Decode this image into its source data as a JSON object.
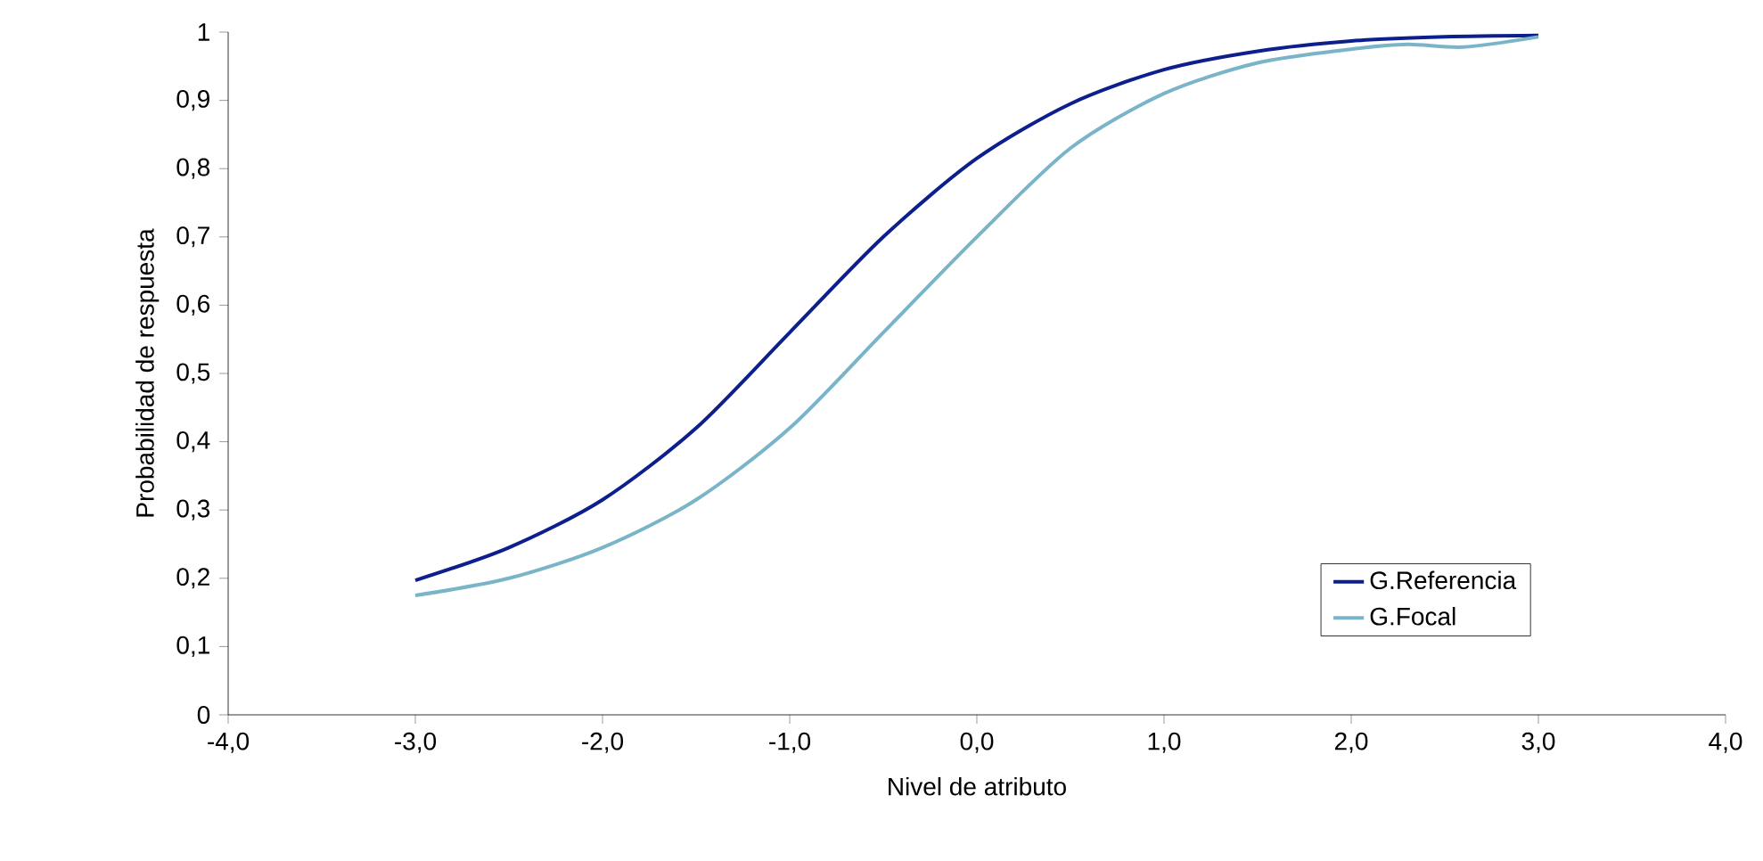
{
  "chart_data": {
    "type": "line",
    "xlabel": "Nivel de atributo",
    "ylabel": "Probabilidad de respuesta",
    "x": [
      -3,
      -2.5,
      -2,
      -1.5,
      -1,
      -0.5,
      0,
      0.5,
      1,
      1.5,
      2,
      2.5,
      3
    ],
    "series": [
      {
        "name": "G.Referencia",
        "color": "#0d1f8c",
        "values": [
          0.197,
          0.245,
          0.315,
          0.42,
          0.56,
          0.7,
          0.815,
          0.895,
          0.945,
          0.972,
          0.987,
          0.993,
          0.995
        ]
      },
      {
        "name": "G.Focal",
        "color": "#7ab4c8",
        "x": [
          -3,
          -2.5,
          -2,
          -1.5,
          -1,
          -0.5,
          0,
          0.5,
          1,
          1.5,
          2,
          2.3,
          2.6,
          3
        ],
        "values": [
          0.175,
          0.2,
          0.245,
          0.315,
          0.42,
          0.56,
          0.7,
          0.83,
          0.91,
          0.955,
          0.975,
          0.982,
          0.978,
          0.993
        ]
      }
    ],
    "xlim": [
      -4,
      4
    ],
    "xticks": [
      {
        "value": -4,
        "label": "-4,0"
      },
      {
        "value": -3,
        "label": "-3,0"
      },
      {
        "value": -2,
        "label": "-2,0"
      },
      {
        "value": -1,
        "label": "-1,0"
      },
      {
        "value": 0,
        "label": "0,0"
      },
      {
        "value": 1,
        "label": "1,0"
      },
      {
        "value": 2,
        "label": "2,0"
      },
      {
        "value": 3,
        "label": "3,0"
      },
      {
        "value": 4,
        "label": "4,0"
      }
    ],
    "ylim": [
      0,
      1
    ],
    "yticks": [
      0,
      {
        "value": 0.1,
        "label": "0,1"
      },
      {
        "value": 0.2,
        "label": "0,2"
      },
      {
        "value": 0.3,
        "label": "0,3"
      },
      {
        "value": 0.4,
        "label": "0,4"
      },
      {
        "value": 0.5,
        "label": "0,5"
      },
      {
        "value": 0.6,
        "label": "0,6"
      },
      {
        "value": 0.7,
        "label": "0,7"
      },
      {
        "value": 0.8,
        "label": "0,8"
      },
      {
        "value": 0.9,
        "label": "0,9"
      },
      1
    ],
    "legend": "bottom right",
    "marker": "none",
    "line_style": "solid"
  }
}
